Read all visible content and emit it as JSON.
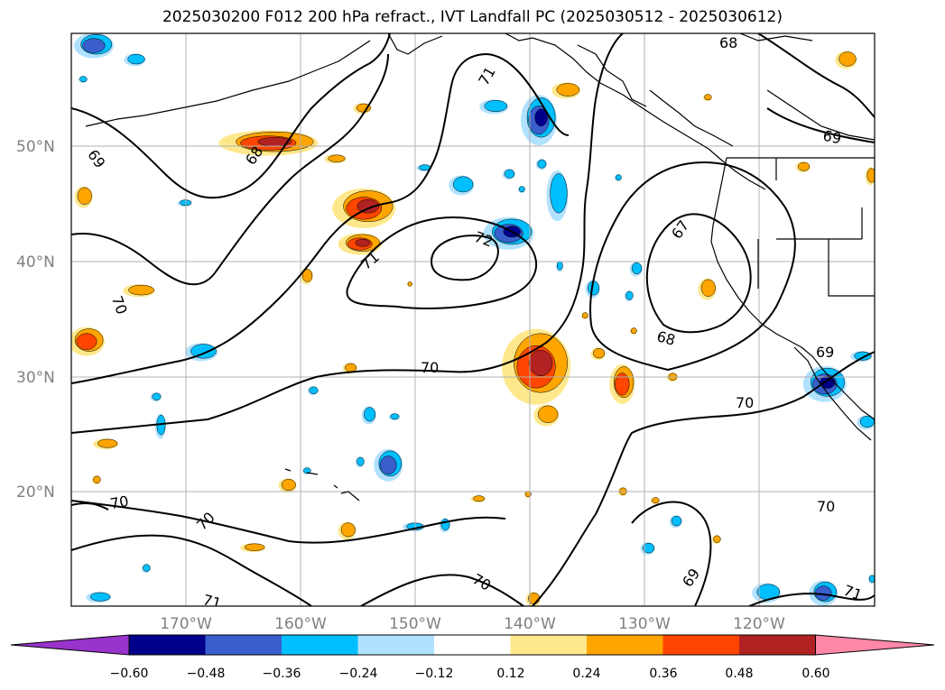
{
  "title": "2025030200 F012 200 hPa refract., IVT Landfall PC (2025030512 - 2025030612)",
  "map": {
    "lat_labels": [
      "50°N",
      "40°N",
      "30°N",
      "20°N"
    ],
    "lon_labels": [
      "170°W",
      "160°W",
      "150°W",
      "140°W",
      "130°W",
      "120°W"
    ],
    "contour_labels": [
      "68",
      "71",
      "69",
      "68",
      "72",
      "71",
      "67",
      "69",
      "70",
      "68",
      "70",
      "69",
      "70",
      "70",
      "70",
      "70",
      "70",
      "69",
      "71",
      "71"
    ]
  },
  "colorbar": {
    "colors": [
      "#9933cc",
      "#00008b",
      "#3a5fcd",
      "#00bfff",
      "#b0e2ff",
      "#ffffff",
      "#ffe88c",
      "#ffa500",
      "#ff4500",
      "#b22222",
      "#ff88a8"
    ],
    "ticks": [
      "−0.60",
      "−0.48",
      "−0.36",
      "−0.24",
      "−0.12",
      "0.12",
      "0.24",
      "0.36",
      "0.48",
      "0.60"
    ]
  }
}
